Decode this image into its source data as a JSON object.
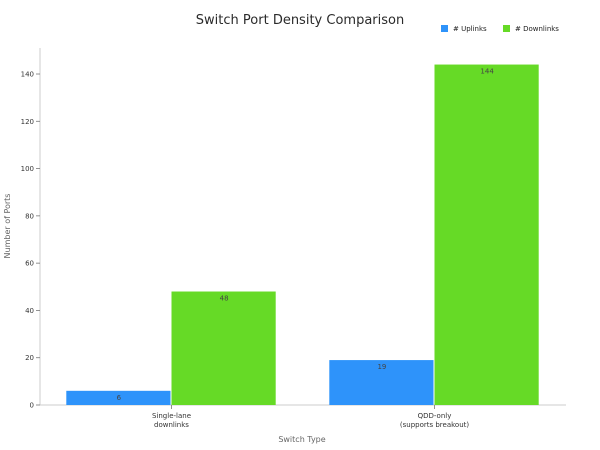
{
  "chart_data": {
    "type": "bar",
    "title": "Switch Port Density Comparison",
    "xlabel": "Switch Type",
    "ylabel": "Number of Ports",
    "categories": [
      [
        "Single-lane",
        "downlinks"
      ],
      [
        "QDD-only",
        "(supports breakout)"
      ]
    ],
    "series": [
      {
        "name": "# Uplinks",
        "color": "#2E93FA",
        "values": [
          6,
          19
        ]
      },
      {
        "name": "# Downlinks",
        "color": "#66DA26",
        "values": [
          48,
          144
        ]
      }
    ],
    "ylim": [
      0,
      151
    ],
    "yticks": [
      0,
      20,
      40,
      60,
      80,
      100,
      120,
      140
    ],
    "grid": false,
    "legend_position": "top-right",
    "data_labels": true
  }
}
